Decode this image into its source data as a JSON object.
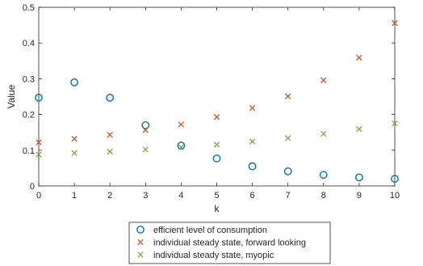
{
  "chart_data": {
    "type": "scatter",
    "title": "",
    "xlabel": "k",
    "ylabel": "Value",
    "xlim": [
      0,
      10
    ],
    "ylim": [
      0,
      0.5
    ],
    "xticks": [
      0,
      1,
      2,
      3,
      4,
      5,
      6,
      7,
      8,
      9,
      10
    ],
    "xtick_labels": [
      "0",
      "1",
      "2",
      "3",
      "4",
      "5",
      "6",
      "7",
      "8",
      "9",
      "10"
    ],
    "yticks": [
      0,
      0.1,
      0.2,
      0.3,
      0.4,
      0.5
    ],
    "ytick_labels": [
      "0",
      "0.1",
      "0.2",
      "0.3",
      "0.4",
      "0.5"
    ],
    "grid": false,
    "legend_position": "bottom-center",
    "x": [
      0,
      1,
      2,
      3,
      4,
      5,
      6,
      7,
      8,
      9,
      10
    ],
    "series": [
      {
        "name": "efficient level of consumption",
        "marker": "circle",
        "color": "#0072BD",
        "values": [
          0.247,
          0.29,
          0.247,
          0.17,
          0.113,
          0.077,
          0.055,
          0.041,
          0.031,
          0.024,
          0.02
        ]
      },
      {
        "name": "individual steady state, forward looking",
        "marker": "x",
        "color": "#D95319",
        "values": [
          0.122,
          0.132,
          0.143,
          0.156,
          0.172,
          0.193,
          0.218,
          0.251,
          0.296,
          0.359,
          0.456
        ]
      },
      {
        "name": "individual steady state, myopic",
        "marker": "x",
        "color": "#77AC30",
        "values": [
          0.088,
          0.092,
          0.096,
          0.102,
          0.108,
          0.116,
          0.124,
          0.134,
          0.146,
          0.159,
          0.175
        ]
      }
    ]
  }
}
